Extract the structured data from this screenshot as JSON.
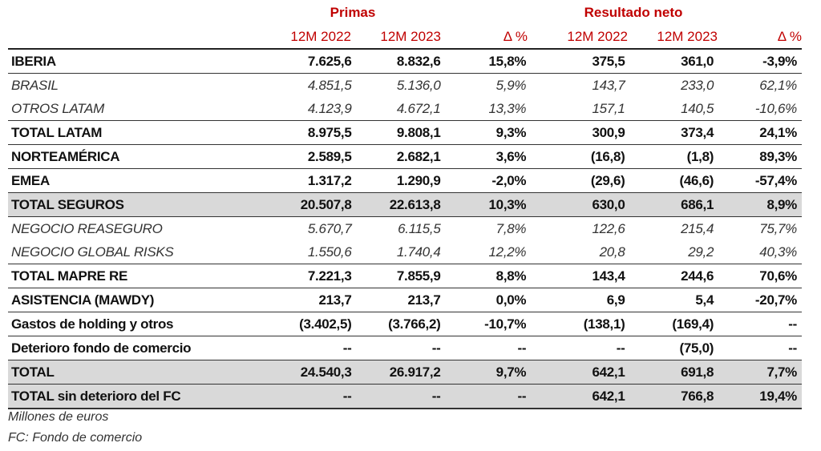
{
  "headers": {
    "primas": "Primas",
    "resultado_neto": "Resultado neto",
    "columns": [
      "12M 2022",
      "12M 2023",
      "Δ %",
      "12M 2022",
      "12M 2023",
      "Δ %"
    ]
  },
  "rows": [
    {
      "label": "IBERIA",
      "style": "b",
      "values": [
        "7.625,6",
        "8.832,6",
        "15,8%",
        "375,5",
        "361,0",
        "-3,9%"
      ]
    },
    {
      "label": "BRASIL",
      "style": "it",
      "values": [
        "4.851,5",
        "5.136,0",
        "5,9%",
        "143,7",
        "233,0",
        "62,1%"
      ]
    },
    {
      "label": "OTROS LATAM",
      "style": "it cont",
      "values": [
        "4.123,9",
        "4.672,1",
        "13,3%",
        "157,1",
        "140,5",
        "-10,6%"
      ]
    },
    {
      "label": "TOTAL LATAM",
      "style": "b",
      "values": [
        "8.975,5",
        "9.808,1",
        "9,3%",
        "300,9",
        "373,4",
        "24,1%"
      ]
    },
    {
      "label": "NORTEAMÉRICA",
      "style": "b",
      "values": [
        "2.589,5",
        "2.682,1",
        "3,6%",
        "(16,8)",
        "(1,8)",
        "89,3%"
      ]
    },
    {
      "label": "EMEA",
      "style": "b",
      "values": [
        "1.317,2",
        "1.290,9",
        "-2,0%",
        "(29,6)",
        "(46,6)",
        "-57,4%"
      ]
    },
    {
      "label": "TOTAL SEGUROS",
      "style": "b gray",
      "values": [
        "20.507,8",
        "22.613,8",
        "10,3%",
        "630,0",
        "686,1",
        "8,9%"
      ]
    },
    {
      "label": "NEGOCIO REASEGURO",
      "style": "it",
      "values": [
        "5.670,7",
        "6.115,5",
        "7,8%",
        "122,6",
        "215,4",
        "75,7%"
      ]
    },
    {
      "label": "NEGOCIO GLOBAL RISKS",
      "style": "it cont",
      "values": [
        "1.550,6",
        "1.740,4",
        "12,2%",
        "20,8",
        "29,2",
        "40,3%"
      ]
    },
    {
      "label": "TOTAL MAPRE RE",
      "style": "b",
      "values": [
        "7.221,3",
        "7.855,9",
        "8,8%",
        "143,4",
        "244,6",
        "70,6%"
      ]
    },
    {
      "label": "ASISTENCIA (MAWDY)",
      "style": "b",
      "values": [
        "213,7",
        "213,7",
        "0,0%",
        "6,9",
        "5,4",
        "-20,7%"
      ]
    },
    {
      "label": "Gastos de holding y otros",
      "style": "b",
      "values": [
        "(3.402,5)",
        "(3.766,2)",
        "-10,7%",
        "(138,1)",
        "(169,4)",
        "--"
      ]
    },
    {
      "label": "Deterioro fondo de comercio",
      "style": "b",
      "values": [
        "--",
        "--",
        "--",
        "--",
        "(75,0)",
        "--"
      ]
    },
    {
      "label": "TOTAL",
      "style": "b gray",
      "values": [
        "24.540,3",
        "26.917,2",
        "9,7%",
        "642,1",
        "691,8",
        "7,7%"
      ]
    },
    {
      "label": "TOTAL sin deterioro del FC",
      "style": "b gray",
      "values": [
        "--",
        "--",
        "--",
        "642,1",
        "766,8",
        "19,4%"
      ]
    }
  ],
  "notes": [
    "Millones de euros",
    "FC: Fondo de comercio"
  ],
  "colors": {
    "header_red": "#c00000",
    "total_row_gray": "#d9d9d9"
  }
}
